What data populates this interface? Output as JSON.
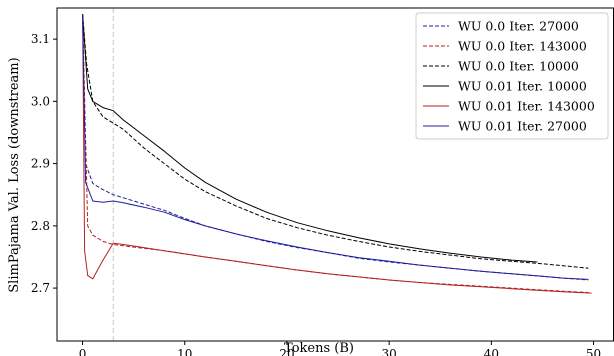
{
  "chart_data": {
    "type": "line",
    "xlabel": "Tokens (B)",
    "ylabel": "SlimPajama Val. Loss (downstream)",
    "xlim": [
      -2.5,
      52
    ],
    "ylim": [
      2.615,
      3.15
    ],
    "xticks": [
      0,
      10,
      20,
      30,
      40,
      50
    ],
    "yticks": [
      2.7,
      2.8,
      2.9,
      3.0,
      3.1
    ],
    "grid": false,
    "legend_position": "top-right",
    "reference_line_x": 3,
    "series": [
      {
        "name": "WU 0.0 Iter. 27000",
        "color": "#1f1f9e",
        "style": "dashed",
        "x": [
          0,
          0.3,
          1,
          2,
          3,
          4,
          6,
          8,
          10,
          12,
          15,
          18,
          21,
          24,
          27,
          30,
          33,
          36,
          39,
          42,
          45,
          47,
          49.5
        ],
        "y": [
          3.14,
          2.9,
          2.868,
          2.858,
          2.85,
          2.845,
          2.835,
          2.825,
          2.812,
          2.8,
          2.787,
          2.775,
          2.765,
          2.757,
          2.748,
          2.742,
          2.737,
          2.732,
          2.727,
          2.723,
          2.719,
          2.716,
          2.713
        ]
      },
      {
        "name": "WU 0.0 Iter. 143000",
        "color": "#b22222",
        "style": "dashed",
        "x": [
          0,
          0.5,
          1,
          2,
          3,
          4,
          6,
          8,
          10,
          12,
          15,
          18,
          21,
          24,
          27,
          30,
          33,
          36,
          39,
          42,
          45,
          47,
          49.5
        ],
        "y": [
          3.14,
          2.8,
          2.785,
          2.775,
          2.77,
          2.768,
          2.764,
          2.76,
          2.755,
          2.75,
          2.743,
          2.736,
          2.729,
          2.723,
          2.718,
          2.713,
          2.709,
          2.706,
          2.703,
          2.7,
          2.697,
          2.695,
          2.693
        ]
      },
      {
        "name": "WU 0.0 Iter. 10000",
        "color": "#000000",
        "style": "dashed",
        "x": [
          0,
          0.4,
          1,
          2,
          3,
          4,
          6,
          8,
          10,
          12,
          15,
          18,
          21,
          24,
          27,
          30,
          33,
          36,
          39,
          42,
          45,
          47,
          49.5
        ],
        "y": [
          3.14,
          3.06,
          3.0,
          2.975,
          2.965,
          2.955,
          2.925,
          2.9,
          2.875,
          2.855,
          2.832,
          2.812,
          2.797,
          2.785,
          2.775,
          2.766,
          2.759,
          2.753,
          2.747,
          2.743,
          2.739,
          2.736,
          2.732
        ]
      },
      {
        "name": "WU 0.01 Iter. 10000",
        "color": "#000000",
        "style": "solid",
        "x": [
          0,
          0.5,
          1,
          2,
          3,
          4,
          6,
          8,
          10,
          12,
          15,
          18,
          21,
          24,
          27,
          30,
          33,
          36,
          39,
          42,
          44.5
        ],
        "y": [
          3.14,
          3.02,
          3.0,
          2.99,
          2.985,
          2.97,
          2.945,
          2.92,
          2.893,
          2.87,
          2.843,
          2.822,
          2.805,
          2.792,
          2.781,
          2.771,
          2.763,
          2.756,
          2.75,
          2.745,
          2.742
        ]
      },
      {
        "name": "WU 0.01 Iter. 143000",
        "color": "#b22222",
        "style": "solid",
        "x": [
          0,
          0.2,
          0.5,
          1,
          2,
          3,
          4,
          6,
          8,
          10,
          12,
          15,
          18,
          21,
          24,
          27,
          30,
          33,
          36,
          39,
          42,
          45,
          47,
          49.8
        ],
        "y": [
          3.14,
          2.76,
          2.72,
          2.715,
          2.745,
          2.772,
          2.77,
          2.765,
          2.76,
          2.755,
          2.75,
          2.743,
          2.736,
          2.729,
          2.723,
          2.718,
          2.713,
          2.709,
          2.705,
          2.702,
          2.699,
          2.696,
          2.694,
          2.692
        ]
      },
      {
        "name": "WU 0.01 Iter. 27000",
        "color": "#1f1f9e",
        "style": "solid",
        "x": [
          0,
          0.3,
          1,
          2,
          3,
          4,
          6,
          8,
          10,
          12,
          15,
          18,
          21,
          24,
          27,
          30,
          33,
          36,
          39,
          42,
          45,
          47,
          49.5
        ],
        "y": [
          3.14,
          2.87,
          2.84,
          2.838,
          2.84,
          2.837,
          2.83,
          2.822,
          2.81,
          2.8,
          2.787,
          2.776,
          2.766,
          2.757,
          2.749,
          2.743,
          2.737,
          2.732,
          2.727,
          2.723,
          2.719,
          2.716,
          2.714
        ]
      }
    ]
  }
}
